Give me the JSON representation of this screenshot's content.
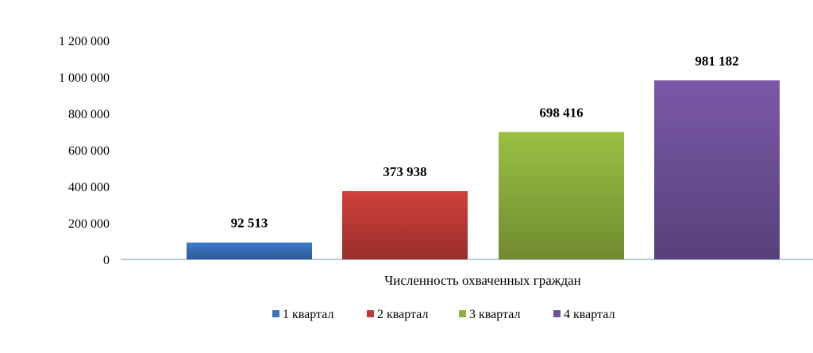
{
  "chart_data": {
    "type": "bar",
    "categories": [
      "Численность охваченных граждан"
    ],
    "series": [
      {
        "name": "1 квартал",
        "values": [
          92513
        ],
        "label": "92 513",
        "color": "#3a72be"
      },
      {
        "name": "2 квартал",
        "values": [
          373938
        ],
        "label": "373 938",
        "color": "#c23b37"
      },
      {
        "name": "3 квартал",
        "values": [
          698416
        ],
        "label": "698 416",
        "color": "#8fb23e"
      },
      {
        "name": "4 квартал",
        "values": [
          981182
        ],
        "label": "981 182",
        "color": "#71529c"
      }
    ],
    "y_ticks": [
      0,
      200000,
      400000,
      600000,
      800000,
      1000000,
      1200000
    ],
    "y_tick_labels": [
      "0",
      "200 000",
      "400 000",
      "600 000",
      "800 000",
      "1 000 000",
      "1 200 000"
    ],
    "ylim": [
      0,
      1200000
    ],
    "grid": false,
    "legend_position": "bottom"
  }
}
